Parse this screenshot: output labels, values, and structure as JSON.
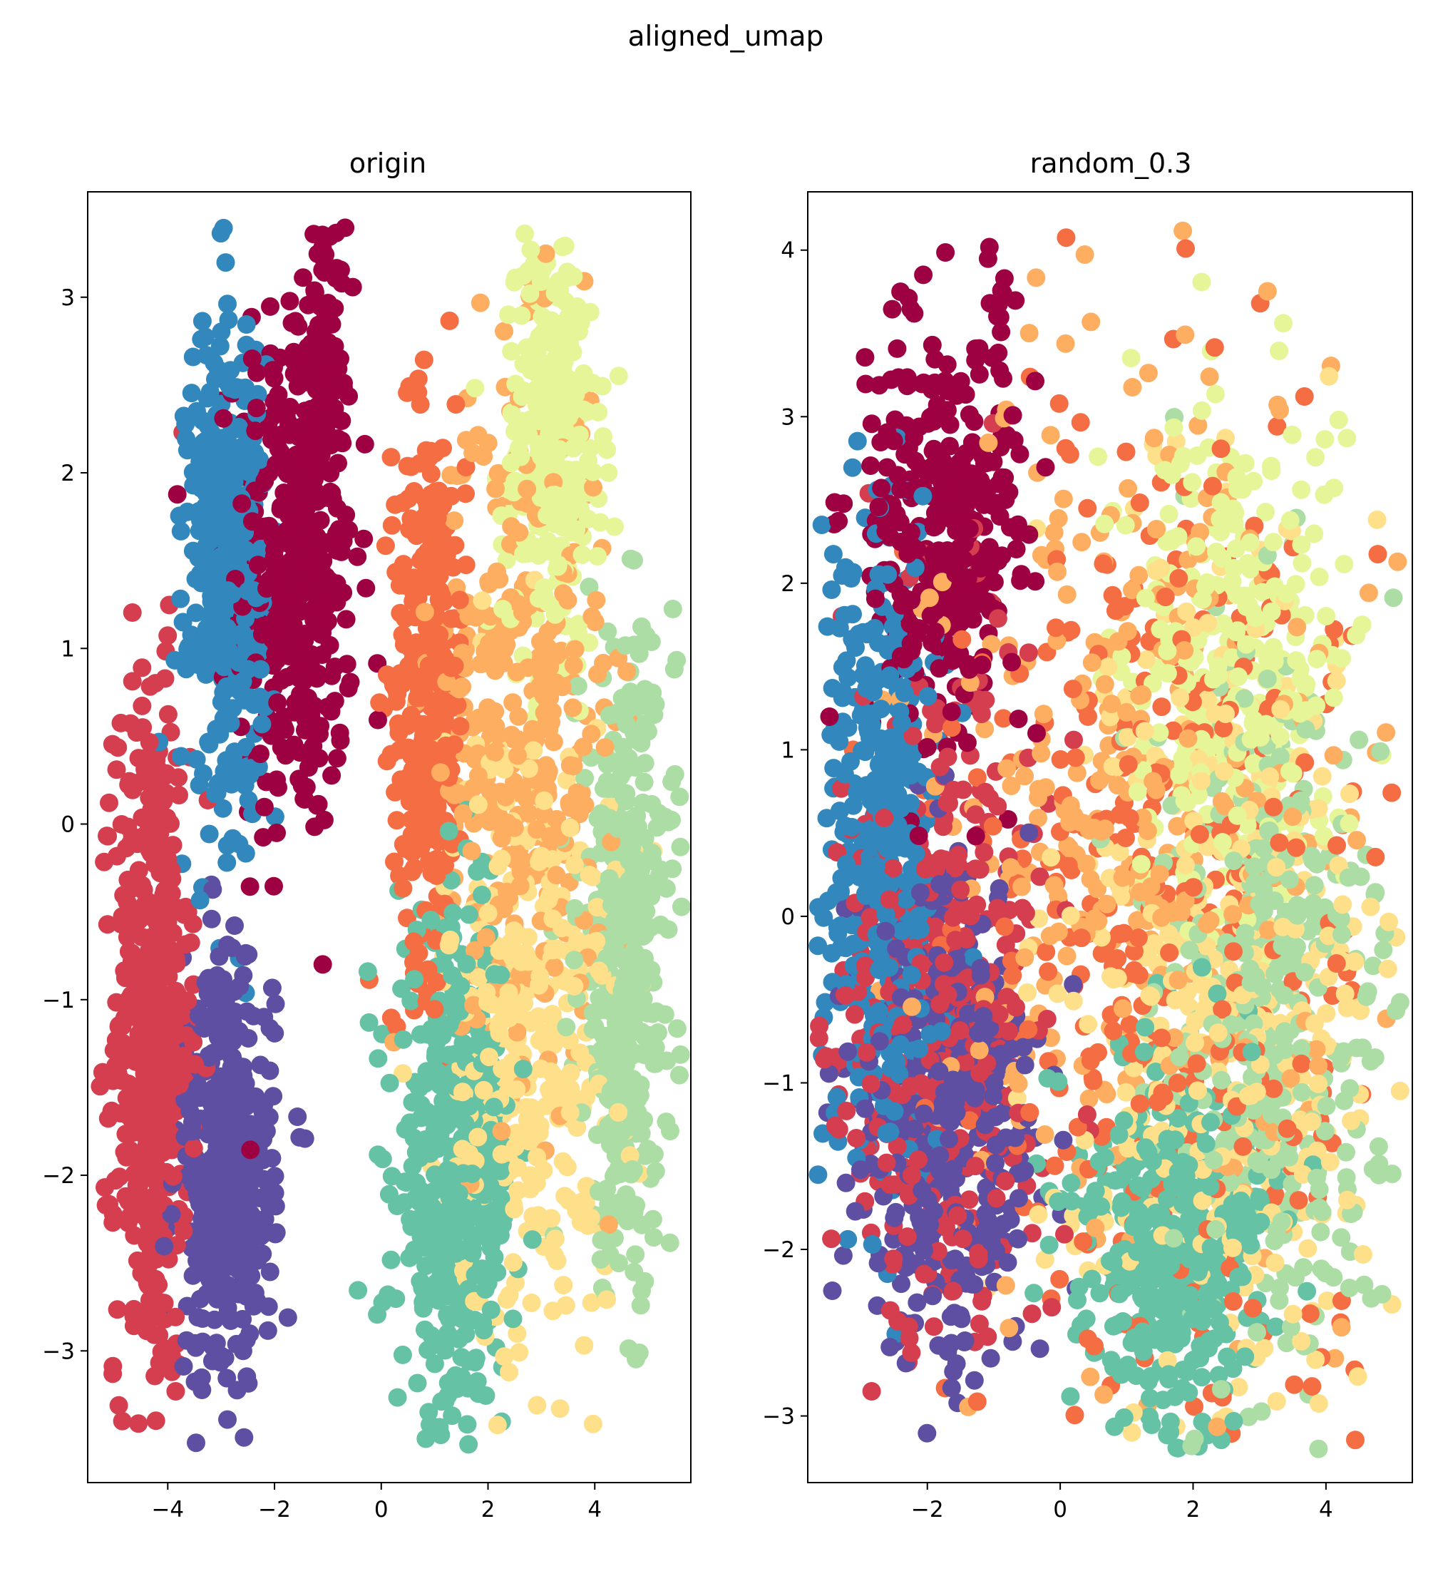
{
  "figure": {
    "suptitle": "aligned_umap"
  },
  "palette": [
    "#9e0142",
    "#d53e4f",
    "#f46d43",
    "#fdae61",
    "#fee08b",
    "#e6f598",
    "#abdda4",
    "#66c2a5",
    "#3288bd",
    "#5e4fa2"
  ],
  "chart_data": [
    {
      "type": "scatter",
      "title": "origin",
      "xlabel": "",
      "ylabel": "",
      "xlim": [
        -5.5,
        5.8
      ],
      "ylim": [
        -3.75,
        3.6
      ],
      "xticks": [
        -4,
        -2,
        0,
        2,
        4
      ],
      "yticks": [
        -3,
        -2,
        -1,
        0,
        1,
        2,
        3
      ],
      "xtick_labels": [
        "−4",
        "−2",
        "0",
        "2",
        "4"
      ],
      "ytick_labels": [
        "−3",
        "−2",
        "−1",
        "0",
        "1",
        "2",
        "3"
      ],
      "grid": false,
      "legend": "none",
      "clusters": [
        {
          "color": "#9e0142",
          "cx": -1.6,
          "cy": 1.5,
          "sx": 0.55,
          "sy": 0.8,
          "n": 420
        },
        {
          "color": "#9e0142",
          "cx": -1.0,
          "cy": 2.8,
          "sx": 0.15,
          "sy": 0.3,
          "n": 60
        },
        {
          "color": "#d53e4f",
          "cx": -4.3,
          "cy": -1.2,
          "sx": 0.35,
          "sy": 1.0,
          "n": 520
        },
        {
          "color": "#f46d43",
          "cx": 0.9,
          "cy": 0.8,
          "sx": 0.35,
          "sy": 0.8,
          "n": 320
        },
        {
          "color": "#fdae61",
          "cx": 2.6,
          "cy": 0.6,
          "sx": 0.8,
          "sy": 1.0,
          "n": 380
        },
        {
          "color": "#fee08b",
          "cx": 2.8,
          "cy": -1.2,
          "sx": 0.8,
          "sy": 0.9,
          "n": 360
        },
        {
          "color": "#e6f598",
          "cx": 3.2,
          "cy": 2.2,
          "sx": 0.45,
          "sy": 0.6,
          "n": 320
        },
        {
          "color": "#abdda4",
          "cx": 4.6,
          "cy": -0.8,
          "sx": 0.45,
          "sy": 0.9,
          "n": 420
        },
        {
          "color": "#66c2a5",
          "cx": 1.4,
          "cy": -2.0,
          "sx": 0.55,
          "sy": 0.7,
          "n": 460
        },
        {
          "color": "#3288bd",
          "cx": -2.9,
          "cy": 1.5,
          "sx": 0.35,
          "sy": 0.7,
          "n": 420
        },
        {
          "color": "#5e4fa2",
          "cx": -2.9,
          "cy": -2.0,
          "sx": 0.45,
          "sy": 0.6,
          "n": 420
        }
      ]
    },
    {
      "type": "scatter",
      "title": "random_0.3",
      "xlabel": "",
      "ylabel": "",
      "xlim": [
        -3.8,
        5.3
      ],
      "ylim": [
        -3.4,
        4.35
      ],
      "xticks": [
        -2,
        0,
        2,
        4
      ],
      "yticks": [
        -3,
        -2,
        -1,
        0,
        1,
        2,
        3,
        4
      ],
      "xtick_labels": [
        "−2",
        "0",
        "2",
        "4"
      ],
      "ytick_labels": [
        "−3",
        "−2",
        "−1",
        "0",
        "1",
        "2",
        "3",
        "4"
      ],
      "grid": false,
      "legend": "none",
      "clusters": [
        {
          "color": "#9e0142",
          "cx": -1.8,
          "cy": 2.3,
          "sx": 0.6,
          "sy": 0.6,
          "n": 360
        },
        {
          "color": "#9e0142",
          "cx": -0.9,
          "cy": 3.8,
          "sx": 0.1,
          "sy": 0.2,
          "n": 12
        },
        {
          "color": "#d53e4f",
          "cx": -1.8,
          "cy": -0.5,
          "sx": 0.8,
          "sy": 1.0,
          "n": 420
        },
        {
          "color": "#f46d43",
          "cx": 1.8,
          "cy": 0.0,
          "sx": 1.6,
          "sy": 1.6,
          "n": 420
        },
        {
          "color": "#fdae61",
          "cx": 1.2,
          "cy": 0.6,
          "sx": 1.5,
          "sy": 1.4,
          "n": 360
        },
        {
          "color": "#fee08b",
          "cx": 2.4,
          "cy": -0.4,
          "sx": 1.2,
          "sy": 1.3,
          "n": 420
        },
        {
          "color": "#e6f598",
          "cx": 2.6,
          "cy": 1.5,
          "sx": 0.8,
          "sy": 0.8,
          "n": 320
        },
        {
          "color": "#abdda4",
          "cx": 3.2,
          "cy": -0.6,
          "sx": 0.9,
          "sy": 1.1,
          "n": 420
        },
        {
          "color": "#66c2a5",
          "cx": 1.7,
          "cy": -2.0,
          "sx": 0.7,
          "sy": 0.6,
          "n": 420
        },
        {
          "color": "#3288bd",
          "cx": -2.7,
          "cy": 0.4,
          "sx": 0.45,
          "sy": 1.0,
          "n": 420
        },
        {
          "color": "#5e4fa2",
          "cx": -1.7,
          "cy": -1.2,
          "sx": 0.7,
          "sy": 0.8,
          "n": 420
        }
      ]
    }
  ]
}
